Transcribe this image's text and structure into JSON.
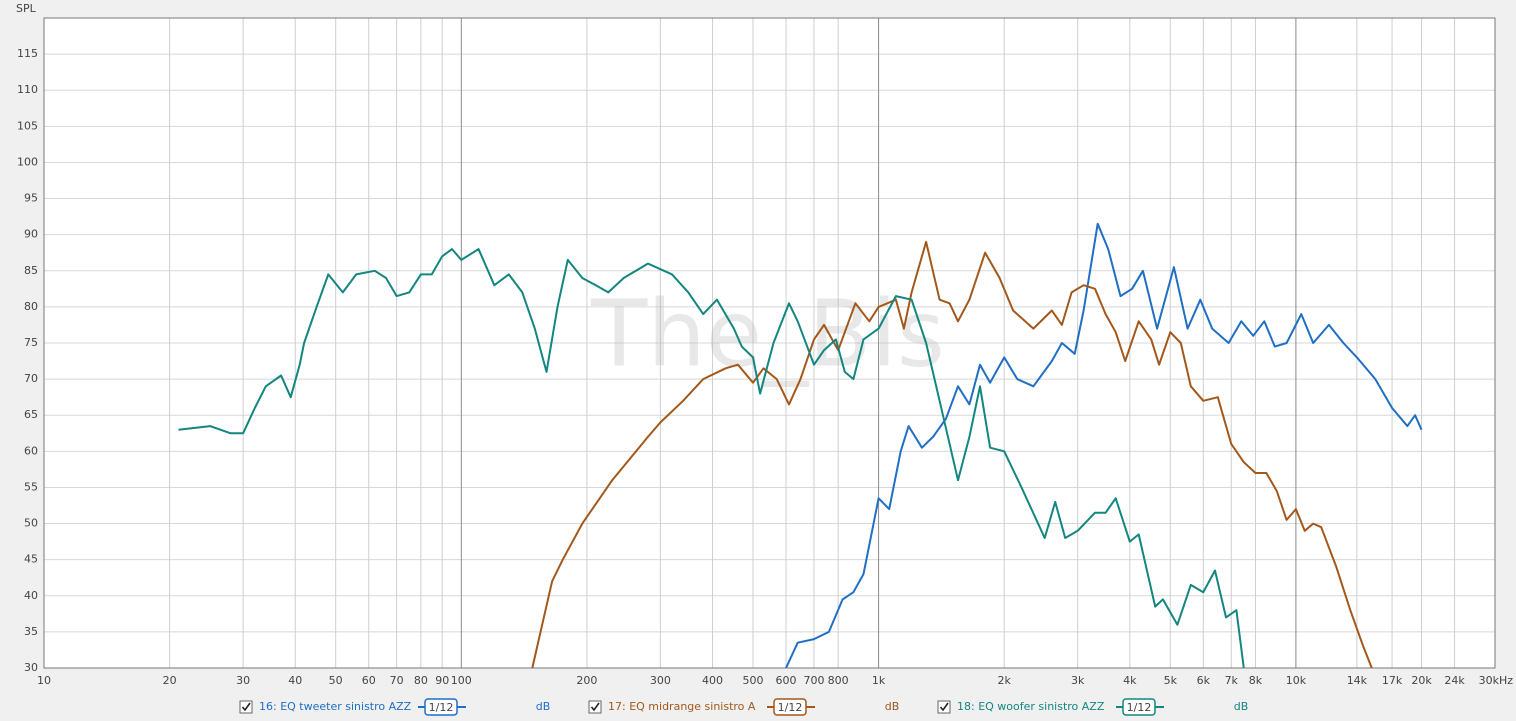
{
  "chart_data": {
    "type": "line",
    "y_label": "SPL",
    "watermark": "The_Bis",
    "x_scale": "log",
    "grid": true,
    "xlim": [
      10,
      30000
    ],
    "ylim": [
      30,
      120
    ],
    "xticks": [
      10,
      20,
      30,
      40,
      50,
      60,
      70,
      80,
      90,
      100,
      200,
      300,
      400,
      500,
      600,
      700,
      800,
      {
        "value": 1000,
        "label": "1k"
      },
      {
        "value": 2000,
        "label": "2k"
      },
      {
        "value": 3000,
        "label": "3k"
      },
      {
        "value": 4000,
        "label": "4k"
      },
      {
        "value": 5000,
        "label": "5k"
      },
      {
        "value": 6000,
        "label": "6k"
      },
      {
        "value": 7000,
        "label": "7k"
      },
      {
        "value": 8000,
        "label": "8k"
      },
      {
        "value": 10000,
        "label": "10k"
      },
      {
        "value": 14000,
        "label": "14k"
      },
      {
        "value": 17000,
        "label": "17k"
      },
      {
        "value": 20000,
        "label": "20k"
      },
      {
        "value": 24000,
        "label": "24k"
      },
      {
        "value": 30000,
        "label": "30kHz"
      }
    ],
    "yticks": [
      30,
      35,
      40,
      45,
      50,
      55,
      60,
      65,
      70,
      75,
      80,
      85,
      90,
      95,
      100,
      105,
      110,
      115
    ],
    "series": [
      {
        "name": "16: EQ tweeter sinistro AZZ",
        "smoothing": "1/12",
        "unit": "dB",
        "color": "#1f6fc5",
        "x": [
          600,
          640,
          700,
          760,
          820,
          870,
          920,
          1000,
          1060,
          1130,
          1180,
          1270,
          1350,
          1450,
          1550,
          1650,
          1750,
          1850,
          2000,
          2150,
          2350,
          2600,
          2750,
          2950,
          3100,
          3350,
          3550,
          3800,
          4050,
          4300,
          4650,
          5100,
          5500,
          5900,
          6300,
          6900,
          7400,
          7900,
          8400,
          8900,
          9500,
          10300,
          11000,
          12000,
          13000,
          14000,
          15500,
          17000,
          18500,
          19300,
          20000
        ],
        "values": [
          30,
          33.5,
          34,
          35,
          39.5,
          40.5,
          43,
          53.5,
          52,
          60,
          63.5,
          60.5,
          62,
          64.5,
          69,
          66.5,
          72,
          69.5,
          73,
          70,
          69,
          72.5,
          75,
          73.5,
          79.5,
          91.5,
          88,
          81.5,
          82.5,
          85,
          77,
          85.5,
          77,
          81,
          77,
          75,
          78,
          76,
          78,
          74.5,
          75,
          79,
          75,
          77.5,
          75,
          73,
          70,
          66,
          63.5,
          65,
          63
        ]
      },
      {
        "name": "17: EQ midrange sinistro A",
        "smoothing": "1/12",
        "unit": "dB",
        "color": "#a3581b",
        "x": [
          148,
          165,
          175,
          195,
          230,
          280,
          300,
          340,
          380,
          430,
          460,
          500,
          530,
          570,
          610,
          650,
          700,
          740,
          800,
          880,
          950,
          1000,
          1100,
          1150,
          1200,
          1300,
          1400,
          1480,
          1550,
          1650,
          1800,
          1950,
          2100,
          2350,
          2600,
          2750,
          2900,
          3100,
          3300,
          3500,
          3700,
          3900,
          4200,
          4500,
          4700,
          5000,
          5300,
          5600,
          6000,
          6500,
          7000,
          7500,
          8000,
          8500,
          9000,
          9500,
          10000,
          10500,
          11000,
          11500,
          12500,
          13500,
          14500,
          15200
        ],
        "values": [
          30,
          42,
          45,
          50,
          56,
          62,
          64,
          67,
          70,
          71.5,
          72,
          69.5,
          71.5,
          70,
          66.5,
          70,
          75.5,
          77.5,
          74,
          80.5,
          78,
          80,
          81,
          77,
          82,
          89,
          81,
          80.5,
          78,
          81,
          87.5,
          84,
          79.5,
          77,
          79.5,
          77.5,
          82,
          83,
          82.5,
          79,
          76.5,
          72.5,
          78,
          75.5,
          72,
          76.5,
          75,
          69,
          67,
          67.5,
          61,
          58.5,
          57,
          57,
          54.5,
          50.5,
          52,
          49,
          50,
          49.5,
          44,
          38,
          33,
          30
        ]
      },
      {
        "name": "18: EQ woofer sinistro AZZ",
        "smoothing": "1/12",
        "unit": "dB",
        "color": "#13867f",
        "x": [
          21,
          25,
          28,
          30,
          32,
          34,
          37,
          39,
          41,
          42,
          45,
          48,
          52,
          56,
          62,
          66,
          70,
          75,
          80,
          85,
          90,
          95,
          100,
          110,
          120,
          130,
          140,
          150,
          160,
          170,
          180,
          195,
          210,
          225,
          245,
          280,
          320,
          350,
          380,
          410,
          450,
          470,
          500,
          520,
          560,
          610,
          640,
          700,
          740,
          790,
          830,
          870,
          920,
          1000,
          1100,
          1200,
          1300,
          1400,
          1550,
          1650,
          1750,
          1850,
          2000,
          2200,
          2500,
          2650,
          2800,
          3000,
          3300,
          3500,
          3700,
          4000,
          4200,
          4600,
          4800,
          5200,
          5600,
          6000,
          6400,
          6800,
          7200,
          7500
        ],
        "values": [
          63,
          63.5,
          62.5,
          62.5,
          66,
          69,
          70.5,
          67.5,
          72,
          75,
          80,
          84.5,
          82,
          84.5,
          85,
          84,
          81.5,
          82,
          84.5,
          84.5,
          87,
          88,
          86.5,
          88,
          83,
          84.5,
          82,
          77,
          71,
          80,
          86.5,
          84,
          83,
          82,
          84,
          86,
          84.5,
          82,
          79,
          81,
          77,
          74.5,
          73,
          68,
          75,
          80.5,
          78,
          72,
          74,
          75.5,
          71,
          70,
          75.5,
          77,
          81.5,
          81,
          75,
          67,
          56,
          62,
          69,
          60.5,
          60,
          55,
          48,
          53,
          48,
          49,
          51.5,
          51.5,
          53.5,
          47.5,
          48.5,
          38.5,
          39.5,
          36,
          41.5,
          40.5,
          43.5,
          37,
          38,
          30
        ]
      }
    ]
  }
}
